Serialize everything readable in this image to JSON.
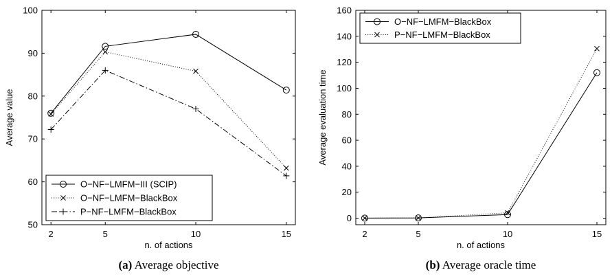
{
  "chart_data": [
    {
      "type": "line",
      "caption_tag": "(a)",
      "caption_text": "Average objective",
      "xlabel": "n. of actions",
      "ylabel": "Average value",
      "x": [
        2,
        5,
        10,
        15
      ],
      "xticks": [
        2,
        5,
        10,
        15
      ],
      "xlim": [
        1.5,
        15.5
      ],
      "ylim": [
        50,
        100
      ],
      "yticks": [
        50,
        60,
        70,
        80,
        90,
        100
      ],
      "grid": false,
      "legend_position": "bottom-left",
      "series": [
        {
          "name": "O−NF−LMFM−III (SCIP)",
          "values": [
            76,
            91.6,
            94.4,
            81.4
          ],
          "style": "solid",
          "marker": "circle"
        },
        {
          "name": "O−NF−LMFM−BlackBox",
          "values": [
            75.8,
            90.3,
            85.8,
            63.2
          ],
          "style": "dotted",
          "marker": "x"
        },
        {
          "name": "P−NF−LMFM−BlackBox",
          "values": [
            72.2,
            86,
            77,
            61.4
          ],
          "style": "dashdot",
          "marker": "plus"
        }
      ]
    },
    {
      "type": "line",
      "caption_tag": "(b)",
      "caption_text": "Average oracle time",
      "xlabel": "n. of actions",
      "ylabel": "Average evaluation time",
      "x": [
        2,
        5,
        10,
        15
      ],
      "xticks": [
        2,
        5,
        10,
        15
      ],
      "xlim": [
        1.5,
        15.5
      ],
      "ylim": [
        -5,
        160
      ],
      "yticks": [
        0,
        20,
        40,
        60,
        80,
        100,
        120,
        140,
        160
      ],
      "grid": false,
      "legend_position": "top-left",
      "series": [
        {
          "name": "O−NF−LMFM−BlackBox",
          "values": [
            0.1,
            0.2,
            2.8,
            112
          ],
          "style": "solid",
          "marker": "circle"
        },
        {
          "name": "P−NF−LMFM−BlackBox",
          "values": [
            0.1,
            0.2,
            4.2,
            130.5
          ],
          "style": "dotted",
          "marker": "x"
        }
      ]
    }
  ]
}
